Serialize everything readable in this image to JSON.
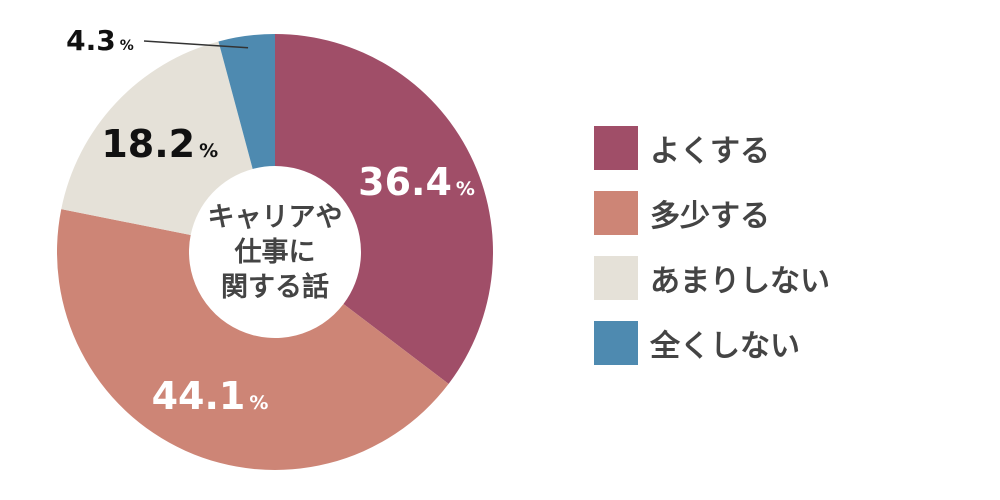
{
  "chart_data": {
    "type": "pie",
    "donut": true,
    "center_label": [
      "キャリアや",
      "仕事に",
      "関する話"
    ],
    "slices": [
      {
        "label": "よくする",
        "value": 36.4,
        "display": "36.4",
        "unit": "%",
        "color": "#a04e68",
        "label_color": "#ffffff"
      },
      {
        "label": "多少する",
        "value": 44.1,
        "display": "44.1",
        "unit": "%",
        "color": "#cd8576",
        "label_color": "#ffffff"
      },
      {
        "label": "あまりしない",
        "value": 18.2,
        "display": "18.2",
        "unit": "%",
        "color": "#e5e1d8",
        "label_color": "#111111"
      },
      {
        "label": "全くしない",
        "value": 4.3,
        "display": "4.3",
        "unit": "%",
        "color": "#4e8ab0",
        "label_color": "#111111",
        "leader_line": true
      }
    ],
    "legend_position": "right"
  }
}
